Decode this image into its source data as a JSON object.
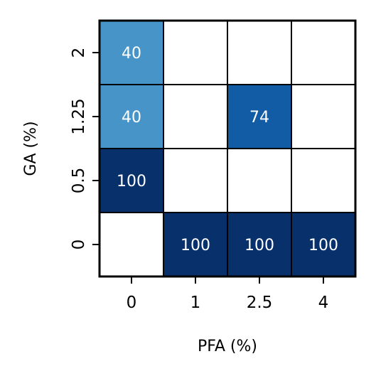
{
  "chart_data": {
    "type": "heatmap",
    "xlabel": "PFA (%)",
    "ylabel": "GA (%)",
    "x_categories": [
      "0",
      "1",
      "2.5",
      "4"
    ],
    "y_categories": [
      "0",
      "0.5",
      "1.25",
      "2"
    ],
    "cells": [
      {
        "x": "0",
        "y": "2",
        "value": 40,
        "label": "40"
      },
      {
        "x": "0",
        "y": "1.25",
        "value": 40,
        "label": "40"
      },
      {
        "x": "2.5",
        "y": "1.25",
        "value": 74,
        "label": "74"
      },
      {
        "x": "0",
        "y": "0.5",
        "value": 100,
        "label": "100"
      },
      {
        "x": "1",
        "y": "0",
        "value": 100,
        "label": "100"
      },
      {
        "x": "2.5",
        "y": "0",
        "value": 100,
        "label": "100"
      },
      {
        "x": "4",
        "y": "0",
        "value": 100,
        "label": "100"
      }
    ],
    "colorscale": "Blues",
    "empty_color": "#ffffff",
    "grid": true
  }
}
